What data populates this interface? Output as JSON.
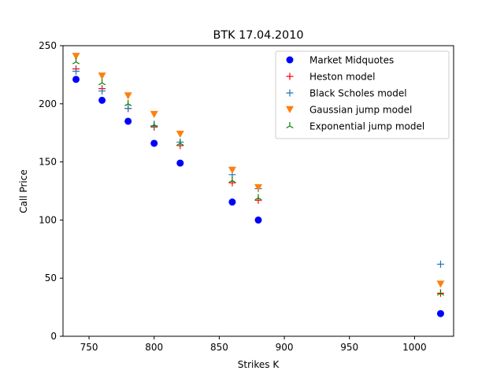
{
  "chart_data": {
    "type": "scatter",
    "title": "BTK 17.04.2010",
    "xlabel": "Strikes K",
    "ylabel": "Call Price",
    "xlim": [
      730,
      1030
    ],
    "ylim": [
      0,
      250
    ],
    "xticks": [
      750,
      800,
      850,
      900,
      950,
      1000
    ],
    "yticks": [
      0,
      50,
      100,
      150,
      200,
      250
    ],
    "grid": false,
    "legend_position": "top-right",
    "x": [
      740,
      760,
      780,
      800,
      820,
      860,
      880,
      1020
    ],
    "series": [
      {
        "name": "Market Midquotes",
        "marker": "circle",
        "color": "#0000ff",
        "values": [
          221,
          203,
          185,
          166,
          149,
          115.5,
          100,
          19.5
        ]
      },
      {
        "name": "Heston model",
        "marker": "plus",
        "color": "#ff0000",
        "values": [
          230,
          213,
          196,
          180,
          164,
          132,
          117,
          37
        ]
      },
      {
        "name": "Black Scholes model",
        "marker": "plus",
        "color": "#1f77b4",
        "values": [
          228,
          211,
          196,
          181,
          167,
          139,
          127,
          62
        ]
      },
      {
        "name": "Gaussian jump model",
        "marker": "triangle-down",
        "color": "#ff7f0e",
        "values": [
          241,
          224,
          207,
          191,
          174,
          143,
          128,
          45
        ]
      },
      {
        "name": "Exponential jump model",
        "marker": "tri-up",
        "color": "#008000",
        "values": [
          236,
          218,
          200,
          182,
          166,
          134,
          119,
          37
        ]
      }
    ]
  }
}
